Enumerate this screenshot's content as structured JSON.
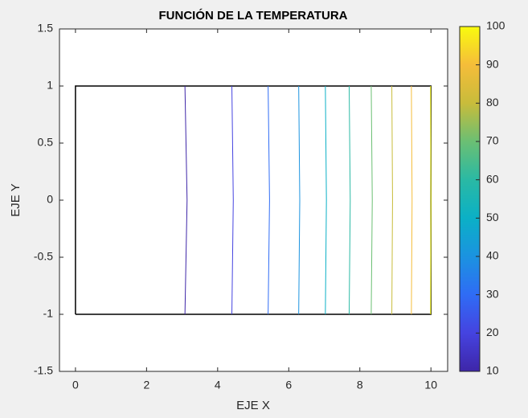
{
  "chart_data": {
    "type": "contour",
    "title": "FUNCIÓN DE LA TEMPERATURA",
    "x_label": "EJE X",
    "y_label": "EJE Y",
    "xlim": [
      -0.45,
      10.47
    ],
    "ylim": [
      -1.5,
      1.5
    ],
    "xticks": [
      0,
      2,
      4,
      6,
      8,
      10
    ],
    "yticks": [
      -1.5,
      -1,
      -0.5,
      0,
      0.5,
      1,
      1.5
    ],
    "boundary": {
      "color": "#000000",
      "x": [
        0,
        10,
        10,
        0,
        0
      ],
      "y": [
        -1,
        -1,
        1,
        1,
        -1
      ]
    },
    "series": [
      {
        "color": "#3e26a8",
        "x": [
          3.08,
          3.14,
          3.08
        ],
        "y": [
          -1,
          0,
          1
        ]
      },
      {
        "color": "#4543e0",
        "x": [
          4.4,
          4.44,
          4.4
        ],
        "y": [
          -1,
          0,
          1
        ]
      },
      {
        "color": "#2f6cf5",
        "x": [
          5.42,
          5.46,
          5.42
        ],
        "y": [
          -1,
          0,
          1
        ]
      },
      {
        "color": "#1b93e0",
        "x": [
          6.28,
          6.31,
          6.28
        ],
        "y": [
          -1,
          0,
          1
        ]
      },
      {
        "color": "#0bb0c6",
        "x": [
          7.03,
          7.06,
          7.03
        ],
        "y": [
          -1,
          0,
          1
        ]
      },
      {
        "color": "#2ab9a4",
        "x": [
          7.7,
          7.73,
          7.7
        ],
        "y": [
          -1,
          0,
          1
        ]
      },
      {
        "color": "#6bbf73",
        "x": [
          8.32,
          8.35,
          8.32
        ],
        "y": [
          -1,
          0,
          1
        ]
      },
      {
        "color": "#c8bc3b",
        "x": [
          8.9,
          8.92,
          8.9
        ],
        "y": [
          -1,
          0,
          1
        ]
      },
      {
        "color": "#f5bd3a",
        "x": [
          9.45,
          9.47,
          9.45
        ],
        "y": [
          -1,
          0,
          1
        ]
      },
      {
        "color": "#f9fb0e",
        "x": [
          9.99,
          10,
          9.99
        ],
        "y": [
          -1,
          0,
          1
        ]
      }
    ],
    "colorbar": {
      "lim": [
        10,
        100
      ],
      "ticks": [
        10,
        20,
        30,
        40,
        50,
        60,
        70,
        80,
        90,
        100
      ]
    }
  }
}
